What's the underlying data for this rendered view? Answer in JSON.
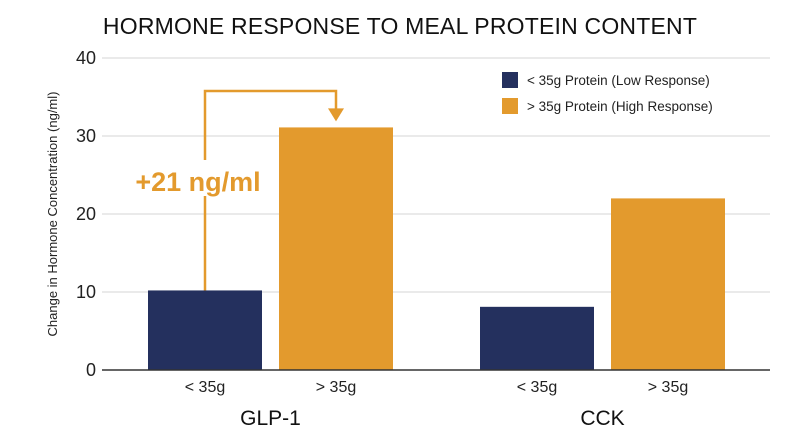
{
  "colors": {
    "low": "#24305e",
    "high": "#e39a2d",
    "grid": "#d4d4d4",
    "axis": "#333333",
    "background": "#ffffff"
  },
  "chart_data": {
    "type": "bar",
    "title": "HORMONE RESPONSE TO MEAL PROTEIN CONTENT",
    "ylabel": "Change in Hormone Concentration (ng/ml)",
    "xlabel": "",
    "ylim": [
      0,
      40
    ],
    "yticks": [
      "0",
      "10",
      "20",
      "30",
      "40"
    ],
    "grid": true,
    "legend_position": "top-right",
    "groups": [
      "GLP-1",
      "CCK"
    ],
    "categories": [
      "< 35g",
      "> 35g"
    ],
    "series": [
      {
        "name": "< 35g Protein (Low Response)",
        "color": "#24305e",
        "values": [
          10.2,
          8.1
        ]
      },
      {
        "name": "> 35g Protein (High Response)",
        "color": "#e39a2d",
        "values": [
          31.1,
          22.0
        ]
      }
    ],
    "annotation": {
      "text": "+21 ng/ml",
      "group": "GLP-1",
      "from_series": 0,
      "to_series": 1,
      "color": "#e39a2d"
    }
  }
}
